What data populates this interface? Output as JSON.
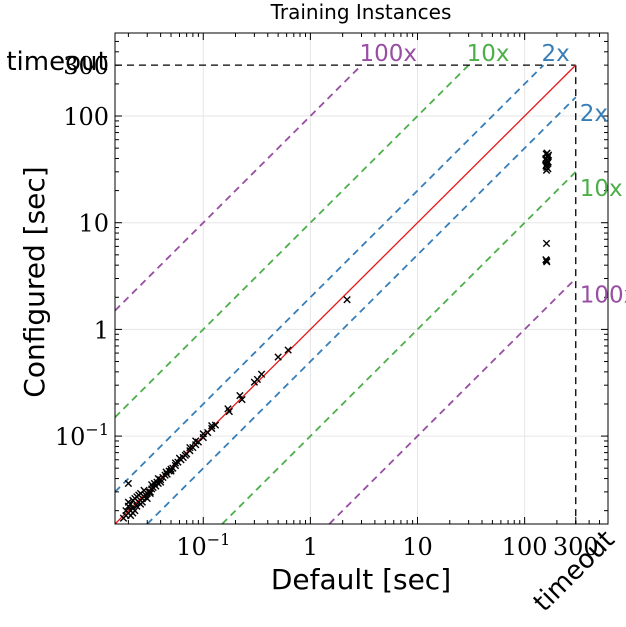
{
  "chart_data": {
    "type": "scatter",
    "title": "Training Instances",
    "xlabel": "Default [sec]",
    "ylabel": "Configured [sec]",
    "x_scale": "log",
    "y_scale": "log",
    "xlim": [
      0.015,
      600
    ],
    "ylim": [
      0.015,
      600
    ],
    "timeout_value": 300,
    "timeout_label": "timeout",
    "grid": true,
    "x_ticks": [
      {
        "value": 0.1,
        "base": "10",
        "exp": "−1"
      },
      {
        "value": 1,
        "label": "1"
      },
      {
        "value": 10,
        "label": "10"
      },
      {
        "value": 100,
        "label": "100"
      },
      {
        "value": 300,
        "label": "300"
      }
    ],
    "y_ticks": [
      {
        "value": 0.1,
        "base": "10",
        "exp": "−1"
      },
      {
        "value": 1,
        "label": "1"
      },
      {
        "value": 10,
        "label": "10"
      },
      {
        "value": 100,
        "label": "100"
      },
      {
        "value": 300,
        "label": "300"
      }
    ],
    "reference_lines": [
      {
        "factor": 100,
        "label": "100x",
        "color": "#984ea3"
      },
      {
        "factor": 10,
        "label": "10x",
        "color": "#4daf4a"
      },
      {
        "factor": 2,
        "label": "2x",
        "color": "#377eb8"
      },
      {
        "factor": 0.5,
        "label": "2x",
        "color": "#377eb8"
      },
      {
        "factor": 0.1,
        "label": "10x",
        "color": "#4daf4a"
      },
      {
        "factor": 0.01,
        "label": "100x",
        "color": "#984ea3"
      }
    ],
    "diagonal_color": "#e41a1c",
    "marker": "x",
    "marker_color": "#000000",
    "points": [
      [
        0.02,
        0.019
      ],
      [
        0.021,
        0.02
      ],
      [
        0.019,
        0.018
      ],
      [
        0.022,
        0.021
      ],
      [
        0.02,
        0.022
      ],
      [
        0.023,
        0.02
      ],
      [
        0.021,
        0.023
      ],
      [
        0.024,
        0.022
      ],
      [
        0.022,
        0.025
      ],
      [
        0.025,
        0.024
      ],
      [
        0.023,
        0.026
      ],
      [
        0.026,
        0.023
      ],
      [
        0.027,
        0.026
      ],
      [
        0.024,
        0.027
      ],
      [
        0.028,
        0.027
      ],
      [
        0.026,
        0.029
      ],
      [
        0.029,
        0.028
      ],
      [
        0.027,
        0.024
      ],
      [
        0.03,
        0.029
      ],
      [
        0.028,
        0.031
      ],
      [
        0.031,
        0.03
      ],
      [
        0.032,
        0.029
      ],
      [
        0.033,
        0.032
      ],
      [
        0.034,
        0.033
      ],
      [
        0.035,
        0.036
      ],
      [
        0.036,
        0.034
      ],
      [
        0.037,
        0.037
      ],
      [
        0.038,
        0.036
      ],
      [
        0.04,
        0.039
      ],
      [
        0.042,
        0.041
      ],
      [
        0.044,
        0.043
      ],
      [
        0.046,
        0.044
      ],
      [
        0.048,
        0.047
      ],
      [
        0.05,
        0.049
      ],
      [
        0.052,
        0.05
      ],
      [
        0.055,
        0.053
      ],
      [
        0.058,
        0.057
      ],
      [
        0.06,
        0.062
      ],
      [
        0.065,
        0.063
      ],
      [
        0.07,
        0.068
      ],
      [
        0.075,
        0.073
      ],
      [
        0.08,
        0.078
      ],
      [
        0.085,
        0.083
      ],
      [
        0.09,
        0.088
      ],
      [
        0.1,
        0.097
      ],
      [
        0.11,
        0.108
      ],
      [
        0.12,
        0.118
      ],
      [
        0.13,
        0.127
      ],
      [
        0.02,
        0.024
      ],
      [
        0.022,
        0.019
      ],
      [
        0.018,
        0.017
      ],
      [
        0.019,
        0.02
      ],
      [
        0.025,
        0.028
      ],
      [
        0.021,
        0.018
      ],
      [
        0.03,
        0.026
      ],
      [
        0.033,
        0.035
      ],
      [
        0.038,
        0.04
      ],
      [
        0.045,
        0.046
      ],
      [
        0.055,
        0.056
      ],
      [
        0.068,
        0.066
      ],
      [
        0.085,
        0.09
      ],
      [
        0.1,
        0.105
      ],
      [
        0.02,
        0.036
      ],
      [
        0.032,
        0.03
      ],
      [
        0.04,
        0.037
      ],
      [
        0.05,
        0.047
      ],
      [
        0.062,
        0.06
      ],
      [
        0.075,
        0.078
      ],
      [
        0.12,
        0.125
      ],
      [
        0.17,
        0.18
      ],
      [
        0.175,
        0.17
      ],
      [
        0.22,
        0.24
      ],
      [
        0.23,
        0.22
      ],
      [
        0.3,
        0.32
      ],
      [
        0.32,
        0.34
      ],
      [
        0.35,
        0.38
      ],
      [
        0.5,
        0.55
      ],
      [
        0.62,
        0.64
      ],
      [
        2.2,
        1.9
      ],
      [
        160,
        35
      ],
      [
        162,
        38
      ],
      [
        158,
        40
      ],
      [
        165,
        42
      ],
      [
        161,
        33
      ],
      [
        163,
        36
      ],
      [
        159,
        44
      ],
      [
        166,
        37
      ],
      [
        157,
        39
      ],
      [
        164,
        41
      ],
      [
        160,
        31
      ],
      [
        167,
        43
      ],
      [
        158,
        34
      ],
      [
        162,
        45
      ],
      [
        165,
        32
      ],
      [
        160,
        6.4
      ],
      [
        158,
        4.5
      ],
      [
        161,
        4.3
      ],
      [
        160,
        4.4
      ]
    ]
  }
}
